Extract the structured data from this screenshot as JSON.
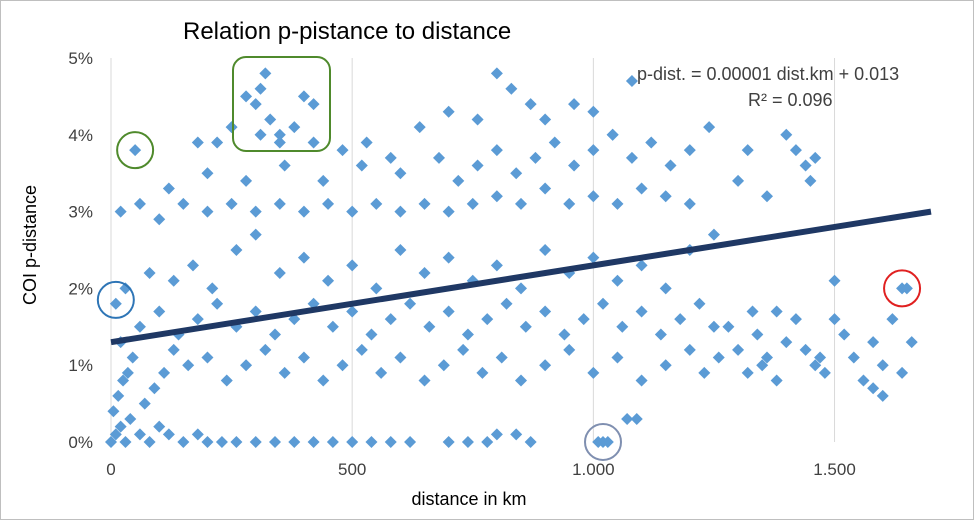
{
  "chart_data": {
    "type": "scatter",
    "title": "Relation p-pistance to distance",
    "xlabel": "distance in km",
    "ylabel": "COI p-distance",
    "xlim": [
      0,
      1700
    ],
    "ylim": [
      0,
      0.05
    ],
    "x_ticks": [
      {
        "value": 0,
        "label": "0"
      },
      {
        "value": 500,
        "label": "500"
      },
      {
        "value": 1000,
        "label": "1.000"
      },
      {
        "value": 1500,
        "label": "1.500"
      }
    ],
    "y_ticks": [
      {
        "value": 0.0,
        "label": "0%"
      },
      {
        "value": 0.01,
        "label": "1%"
      },
      {
        "value": 0.02,
        "label": "2%"
      },
      {
        "value": 0.03,
        "label": "3%"
      },
      {
        "value": 0.04,
        "label": "4%"
      },
      {
        "value": 0.05,
        "label": "5%"
      }
    ],
    "grid": {
      "vertical": true,
      "horizontal": false
    },
    "legend": "none",
    "marker": "diamond",
    "colors": {
      "points": "#5b9bd5",
      "trendline": "#1f3864",
      "frame": "#bfbfbf"
    },
    "trendline": {
      "slope": 1e-05,
      "intercept": 0.013,
      "x_range": [
        0,
        1700
      ],
      "equation": "p-dist. = 0.00001 dist.km + 0.013",
      "r_squared": "R² = 0.096"
    },
    "highlights": [
      {
        "x": 50,
        "y": 0.038,
        "color": "#4f8a2c",
        "shape": "circle"
      },
      {
        "x": 370,
        "y": 0.043,
        "color": "#4f8a2c",
        "shape": "rounded-rect"
      },
      {
        "x": 10,
        "y": 0.0185,
        "color": "#2e75b6",
        "shape": "circle"
      },
      {
        "x": 1020,
        "y": 0.0,
        "color": "#7f8fb0",
        "shape": "circle"
      },
      {
        "x": 1640,
        "y": 0.02,
        "color": "#e02020",
        "shape": "circle"
      }
    ],
    "series": [
      {
        "points": [
          [
            0,
            0.0
          ],
          [
            10,
            0.001
          ],
          [
            20,
            0.002
          ],
          [
            30,
            0.0
          ],
          [
            40,
            0.003
          ],
          [
            60,
            0.001
          ],
          [
            80,
            0.0
          ],
          [
            100,
            0.002
          ],
          [
            120,
            0.001
          ],
          [
            150,
            0.0
          ],
          [
            180,
            0.001
          ],
          [
            200,
            0.0
          ],
          [
            230,
            0.0
          ],
          [
            260,
            0.0
          ],
          [
            300,
            0.0
          ],
          [
            340,
            0.0
          ],
          [
            380,
            0.0
          ],
          [
            420,
            0.0
          ],
          [
            460,
            0.0
          ],
          [
            500,
            0.0
          ],
          [
            540,
            0.0
          ],
          [
            580,
            0.0
          ],
          [
            620,
            0.0
          ],
          [
            700,
            0.0
          ],
          [
            740,
            0.0
          ],
          [
            780,
            0.0
          ],
          [
            800,
            0.001
          ],
          [
            840,
            0.001
          ],
          [
            870,
            0.0
          ],
          [
            1010,
            0.0
          ],
          [
            1030,
            0.0
          ],
          [
            1070,
            0.003
          ],
          [
            1090,
            0.003
          ],
          [
            5,
            0.004
          ],
          [
            15,
            0.006
          ],
          [
            25,
            0.008
          ],
          [
            35,
            0.009
          ],
          [
            45,
            0.011
          ],
          [
            70,
            0.005
          ],
          [
            90,
            0.007
          ],
          [
            110,
            0.009
          ],
          [
            130,
            0.012
          ],
          [
            160,
            0.01
          ],
          [
            200,
            0.011
          ],
          [
            240,
            0.008
          ],
          [
            280,
            0.01
          ],
          [
            320,
            0.012
          ],
          [
            360,
            0.009
          ],
          [
            400,
            0.011
          ],
          [
            440,
            0.008
          ],
          [
            480,
            0.01
          ],
          [
            520,
            0.012
          ],
          [
            560,
            0.009
          ],
          [
            600,
            0.011
          ],
          [
            650,
            0.008
          ],
          [
            690,
            0.01
          ],
          [
            730,
            0.012
          ],
          [
            770,
            0.009
          ],
          [
            810,
            0.011
          ],
          [
            850,
            0.008
          ],
          [
            900,
            0.01
          ],
          [
            950,
            0.012
          ],
          [
            1000,
            0.009
          ],
          [
            1050,
            0.011
          ],
          [
            1100,
            0.008
          ],
          [
            1150,
            0.01
          ],
          [
            1200,
            0.012
          ],
          [
            1230,
            0.009
          ],
          [
            1260,
            0.011
          ],
          [
            20,
            0.013
          ],
          [
            60,
            0.015
          ],
          [
            100,
            0.017
          ],
          [
            140,
            0.014
          ],
          [
            180,
            0.016
          ],
          [
            220,
            0.018
          ],
          [
            260,
            0.015
          ],
          [
            300,
            0.017
          ],
          [
            340,
            0.014
          ],
          [
            380,
            0.016
          ],
          [
            420,
            0.018
          ],
          [
            460,
            0.015
          ],
          [
            500,
            0.017
          ],
          [
            540,
            0.014
          ],
          [
            580,
            0.016
          ],
          [
            620,
            0.018
          ],
          [
            660,
            0.015
          ],
          [
            700,
            0.017
          ],
          [
            740,
            0.014
          ],
          [
            780,
            0.016
          ],
          [
            820,
            0.018
          ],
          [
            860,
            0.015
          ],
          [
            900,
            0.017
          ],
          [
            940,
            0.014
          ],
          [
            980,
            0.016
          ],
          [
            1020,
            0.018
          ],
          [
            1060,
            0.015
          ],
          [
            1100,
            0.017
          ],
          [
            1140,
            0.014
          ],
          [
            1180,
            0.016
          ],
          [
            1220,
            0.018
          ],
          [
            1250,
            0.015
          ],
          [
            30,
            0.02
          ],
          [
            80,
            0.022
          ],
          [
            130,
            0.021
          ],
          [
            170,
            0.023
          ],
          [
            210,
            0.02
          ],
          [
            260,
            0.025
          ],
          [
            300,
            0.027
          ],
          [
            350,
            0.022
          ],
          [
            400,
            0.024
          ],
          [
            450,
            0.021
          ],
          [
            500,
            0.023
          ],
          [
            550,
            0.02
          ],
          [
            600,
            0.025
          ],
          [
            650,
            0.022
          ],
          [
            700,
            0.024
          ],
          [
            750,
            0.021
          ],
          [
            800,
            0.023
          ],
          [
            850,
            0.02
          ],
          [
            900,
            0.025
          ],
          [
            950,
            0.022
          ],
          [
            1000,
            0.024
          ],
          [
            1050,
            0.021
          ],
          [
            1100,
            0.023
          ],
          [
            1150,
            0.02
          ],
          [
            1200,
            0.025
          ],
          [
            1250,
            0.027
          ],
          [
            20,
            0.03
          ],
          [
            60,
            0.031
          ],
          [
            100,
            0.029
          ],
          [
            150,
            0.031
          ],
          [
            200,
            0.03
          ],
          [
            250,
            0.031
          ],
          [
            300,
            0.03
          ],
          [
            350,
            0.031
          ],
          [
            400,
            0.03
          ],
          [
            450,
            0.031
          ],
          [
            500,
            0.03
          ],
          [
            550,
            0.031
          ],
          [
            600,
            0.03
          ],
          [
            650,
            0.031
          ],
          [
            700,
            0.03
          ],
          [
            750,
            0.031
          ],
          [
            800,
            0.032
          ],
          [
            850,
            0.031
          ],
          [
            900,
            0.033
          ],
          [
            950,
            0.031
          ],
          [
            1000,
            0.032
          ],
          [
            1050,
            0.031
          ],
          [
            1100,
            0.033
          ],
          [
            1150,
            0.032
          ],
          [
            1200,
            0.031
          ],
          [
            120,
            0.033
          ],
          [
            200,
            0.035
          ],
          [
            280,
            0.034
          ],
          [
            360,
            0.036
          ],
          [
            440,
            0.034
          ],
          [
            520,
            0.036
          ],
          [
            600,
            0.035
          ],
          [
            680,
            0.037
          ],
          [
            720,
            0.034
          ],
          [
            760,
            0.036
          ],
          [
            800,
            0.038
          ],
          [
            840,
            0.035
          ],
          [
            880,
            0.037
          ],
          [
            920,
            0.039
          ],
          [
            960,
            0.036
          ],
          [
            1000,
            0.038
          ],
          [
            1040,
            0.04
          ],
          [
            1080,
            0.037
          ],
          [
            1120,
            0.039
          ],
          [
            1160,
            0.036
          ],
          [
            1200,
            0.038
          ],
          [
            1240,
            0.041
          ],
          [
            180,
            0.039
          ],
          [
            220,
            0.039
          ],
          [
            250,
            0.041
          ],
          [
            310,
            0.04
          ],
          [
            350,
            0.039
          ],
          [
            420,
            0.039
          ],
          [
            480,
            0.038
          ],
          [
            530,
            0.039
          ],
          [
            580,
            0.037
          ],
          [
            640,
            0.041
          ],
          [
            700,
            0.043
          ],
          [
            760,
            0.042
          ],
          [
            800,
            0.048
          ],
          [
            830,
            0.046
          ],
          [
            870,
            0.044
          ],
          [
            900,
            0.042
          ],
          [
            960,
            0.044
          ],
          [
            1000,
            0.043
          ],
          [
            1040,
            0.04
          ],
          [
            1080,
            0.047
          ],
          [
            50,
            0.038
          ],
          [
            280,
            0.045
          ],
          [
            300,
            0.044
          ],
          [
            320,
            0.048
          ],
          [
            330,
            0.042
          ],
          [
            380,
            0.041
          ],
          [
            400,
            0.045
          ],
          [
            420,
            0.044
          ],
          [
            310,
            0.046
          ],
          [
            350,
            0.04
          ],
          [
            10,
            0.018
          ],
          [
            1020,
            0.0
          ],
          [
            1640,
            0.02
          ],
          [
            1300,
            0.034
          ],
          [
            1320,
            0.038
          ],
          [
            1400,
            0.04
          ],
          [
            1420,
            0.038
          ],
          [
            1440,
            0.036
          ],
          [
            1460,
            0.037
          ],
          [
            1450,
            0.034
          ],
          [
            1360,
            0.032
          ],
          [
            1280,
            0.015
          ],
          [
            1300,
            0.012
          ],
          [
            1320,
            0.009
          ],
          [
            1340,
            0.014
          ],
          [
            1360,
            0.011
          ],
          [
            1380,
            0.008
          ],
          [
            1400,
            0.013
          ],
          [
            1420,
            0.016
          ],
          [
            1440,
            0.012
          ],
          [
            1460,
            0.01
          ],
          [
            1480,
            0.009
          ],
          [
            1500,
            0.016
          ],
          [
            1520,
            0.014
          ],
          [
            1540,
            0.011
          ],
          [
            1560,
            0.008
          ],
          [
            1580,
            0.013
          ],
          [
            1600,
            0.01
          ],
          [
            1620,
            0.016
          ],
          [
            1640,
            0.009
          ],
          [
            1660,
            0.013
          ],
          [
            1380,
            0.017
          ],
          [
            1500,
            0.021
          ],
          [
            1600,
            0.006
          ],
          [
            1650,
            0.02
          ],
          [
            1580,
            0.007
          ],
          [
            1470,
            0.011
          ],
          [
            1350,
            0.01
          ],
          [
            1330,
            0.017
          ]
        ]
      }
    ]
  }
}
